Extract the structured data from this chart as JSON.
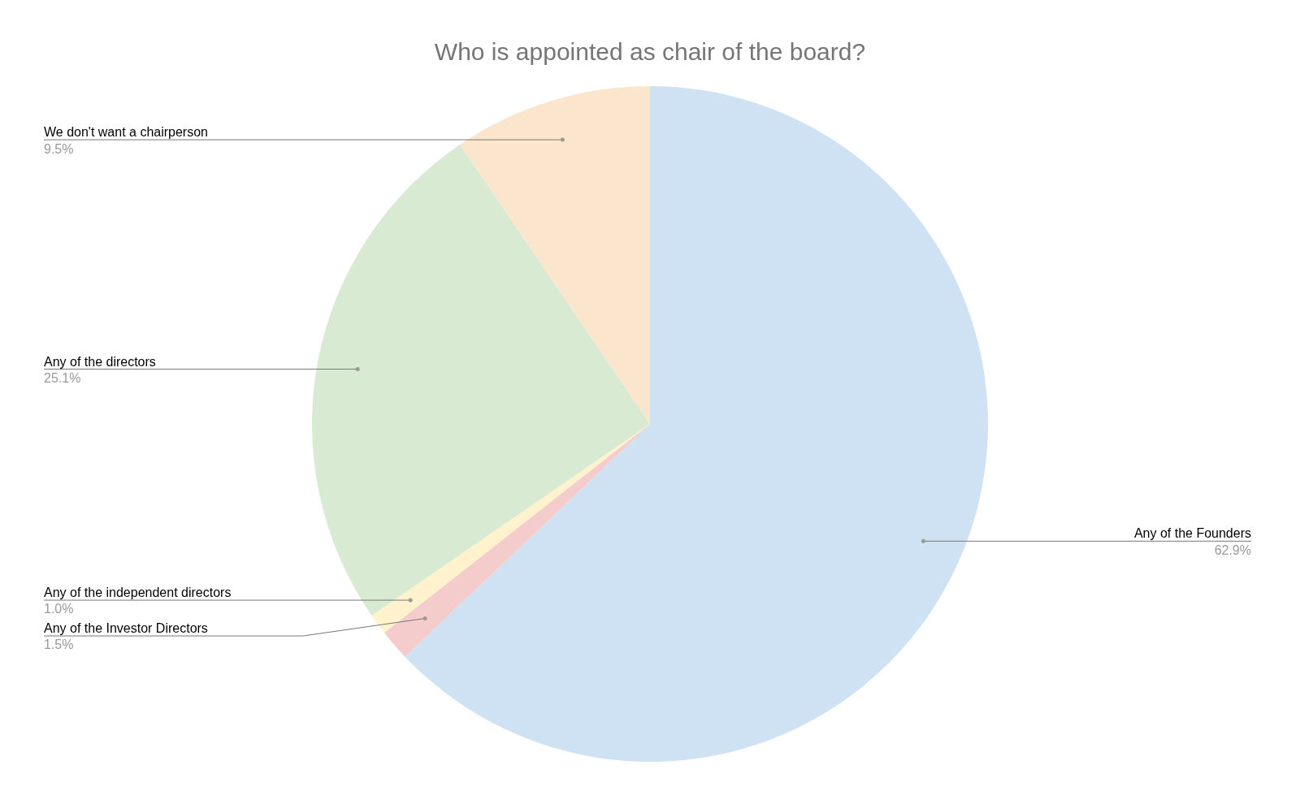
{
  "chart_data": {
    "type": "pie",
    "title": "Who is appointed as chair of the board?",
    "categories": [
      "Any of the Founders",
      "Any of the Investor Directors",
      "Any of the independent directors",
      "Any of the directors",
      "We don't want a chairperson"
    ],
    "values": [
      62.9,
      1.5,
      1.0,
      25.1,
      9.5
    ],
    "value_labels": [
      "62.9%",
      "1.5%",
      "1.0%",
      "25.1%",
      "9.5%"
    ],
    "colors": [
      "#cfe2f3",
      "#f4cccc",
      "#fff2cc",
      "#d9ead3",
      "#fce5cd"
    ],
    "legend": false
  }
}
